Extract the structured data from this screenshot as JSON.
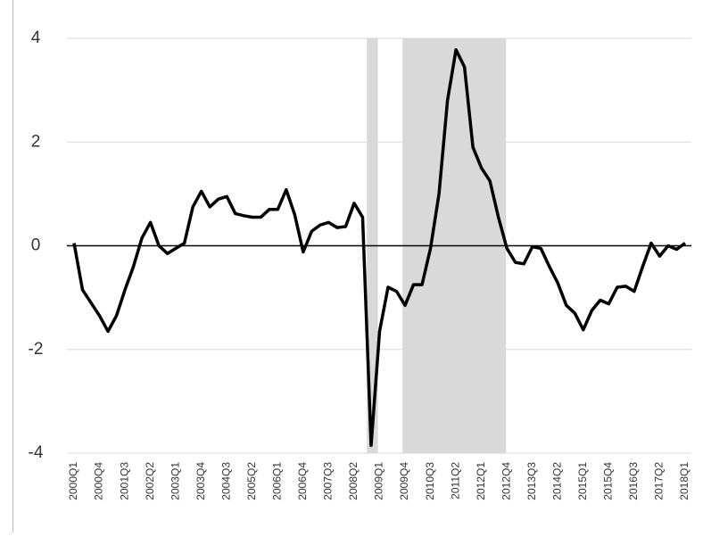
{
  "chart_data": {
    "type": "line",
    "categories": [
      "2000Q1",
      null,
      null,
      "2000Q4",
      null,
      null,
      "2001Q3",
      null,
      null,
      "2002Q2",
      null,
      null,
      "2003Q1",
      null,
      null,
      "2003Q4",
      null,
      null,
      "2004Q3",
      null,
      null,
      "2005Q2",
      null,
      null,
      "2006Q1",
      null,
      null,
      "2006Q4",
      null,
      null,
      "2007Q3",
      null,
      null,
      "2008Q2",
      null,
      null,
      "2009Q1",
      null,
      null,
      "2009Q4",
      null,
      null,
      "2010Q3",
      null,
      null,
      "2011Q2",
      null,
      null,
      "2012Q1",
      null,
      null,
      "2012Q4",
      null,
      null,
      "2013Q3",
      null,
      null,
      "2014Q2",
      null,
      null,
      "2015Q1",
      null,
      null,
      "2015Q4",
      null,
      null,
      "2016Q3",
      null,
      null,
      "2017Q2",
      null,
      null,
      "2018Q1"
    ],
    "values": [
      0.05,
      -0.85,
      -1.1,
      -1.35,
      -1.65,
      -1.35,
      -0.85,
      -0.4,
      0.15,
      0.45,
      0.0,
      -0.15,
      -0.05,
      0.05,
      0.75,
      1.05,
      0.75,
      0.9,
      0.95,
      0.62,
      0.58,
      0.55,
      0.55,
      0.7,
      0.7,
      1.08,
      0.6,
      -0.12,
      0.28,
      0.4,
      0.45,
      0.35,
      0.37,
      0.82,
      0.55,
      -3.85,
      -1.65,
      -0.8,
      -0.88,
      -1.15,
      -0.75,
      -0.75,
      -0.05,
      1.0,
      2.8,
      3.78,
      3.45,
      1.9,
      1.5,
      1.25,
      0.55,
      -0.05,
      -0.32,
      -0.35,
      -0.02,
      -0.05,
      -0.4,
      -0.72,
      -1.15,
      -1.3,
      -1.62,
      -1.25,
      -1.05,
      -1.12,
      -0.8,
      -0.78,
      -0.88,
      -0.4,
      0.05,
      -0.2,
      0.0,
      -0.07,
      0.05
    ],
    "color": "#000000",
    "bands": [
      {
        "from": 34.5,
        "to": 35.8
      },
      {
        "from": 38.7,
        "to": 50.9
      }
    ],
    "band_color": "#d9d9d9",
    "ylim": [
      -4,
      4
    ],
    "yticks": [
      -4,
      -2,
      0,
      2,
      4
    ],
    "grid": true
  }
}
